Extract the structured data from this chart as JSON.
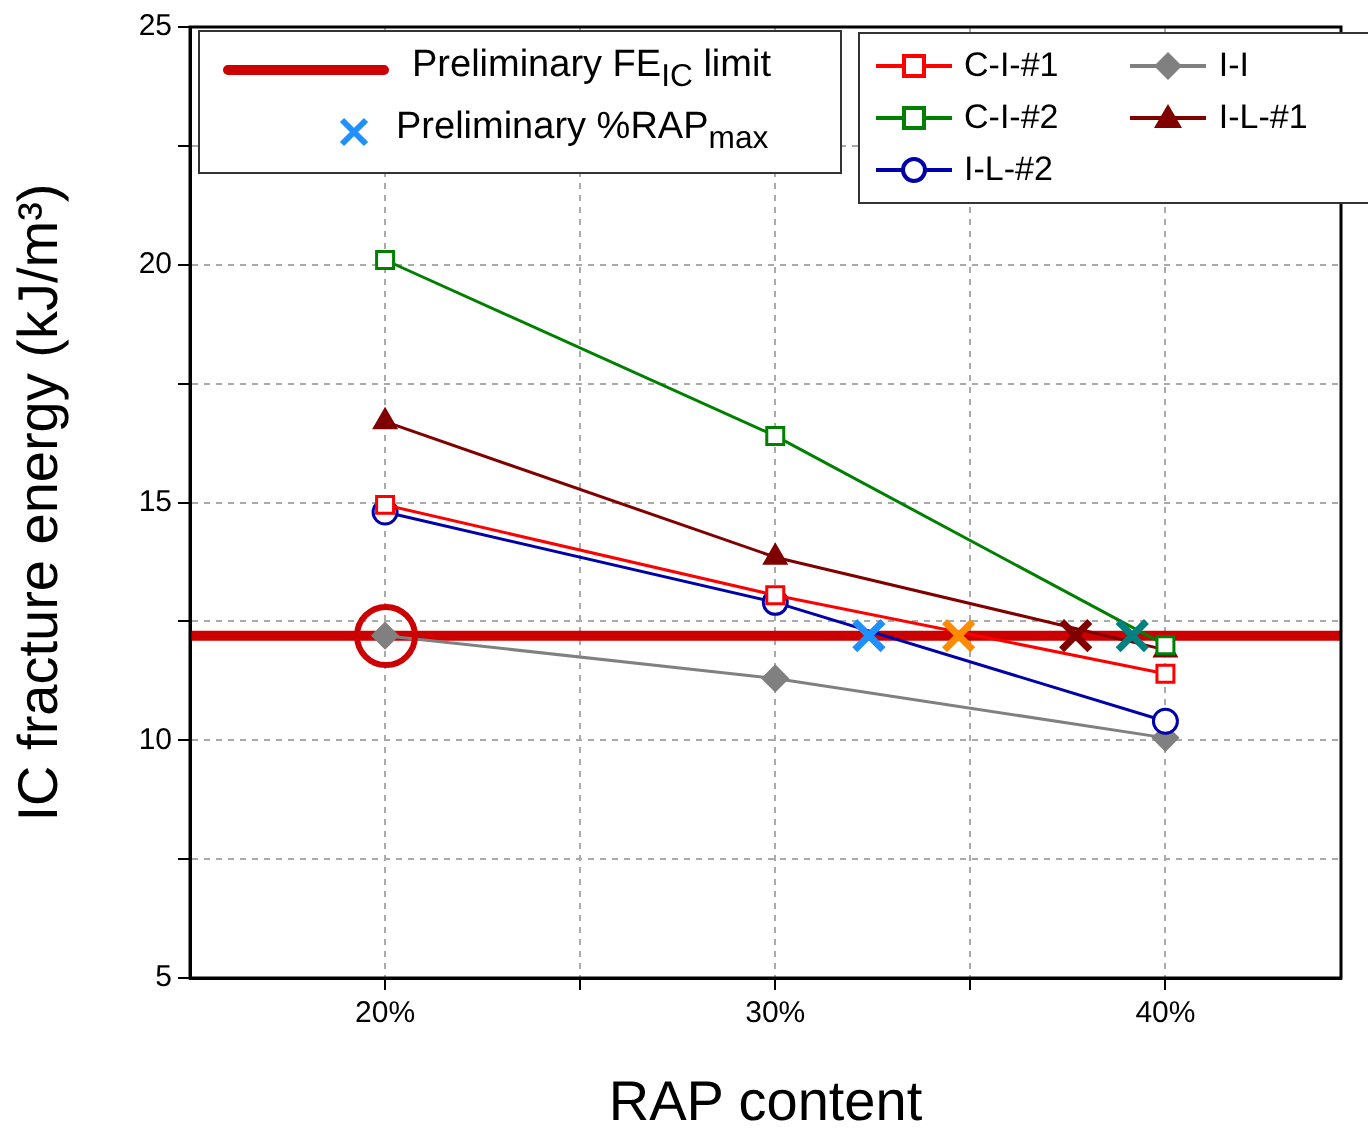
{
  "chart_data": {
    "type": "line",
    "xlabel": "RAP content",
    "ylabel": "IC fracture energy (kJ/m³)",
    "x": [
      20,
      30,
      40
    ],
    "series": [
      {
        "name": "C-I-#1",
        "color": "#ff0000",
        "marker": "square",
        "values": [
          14.95,
          13.05,
          11.4
        ]
      },
      {
        "name": "C-I-#2",
        "color": "#008000",
        "marker": "square",
        "values": [
          20.1,
          16.4,
          12.0
        ]
      },
      {
        "name": "I-L-#2",
        "color": "#0000aa",
        "marker": "circle",
        "values": [
          14.8,
          12.9,
          10.4
        ]
      },
      {
        "name": "I-I",
        "color": "#808080",
        "marker": "diamond",
        "values": [
          12.2,
          11.3,
          10.05
        ]
      },
      {
        "name": "I-L-#1",
        "color": "#800000",
        "marker": "triangle",
        "values": [
          16.7,
          13.85,
          11.9
        ]
      },
      {
        "name": "Preliminary %RAP$_{max}$",
        "type": "scatter",
        "marker": "cross",
        "x": [
          32.4,
          34.7,
          37.7,
          39.15
        ],
        "values": [
          12.2,
          12.2,
          12.2,
          12.2
        ],
        "colors": [
          "#1e90ff",
          "#ff8c00",
          "#800000",
          "#008080"
        ]
      }
    ],
    "ref_lines": [
      {
        "axis": "y",
        "value": 12.2,
        "label": "Preliminary FE$_{IC}$ limit",
        "color": "#cc0000"
      }
    ],
    "xlim": [
      15,
      44.5
    ],
    "xticks": [
      {
        "value": 20,
        "label": "20%"
      },
      {
        "value": 25,
        "label": null
      },
      {
        "value": 30,
        "label": "30%"
      },
      {
        "value": 35,
        "label": null
      },
      {
        "value": 40,
        "label": "40%"
      }
    ],
    "ylim": [
      5,
      25
    ],
    "yticks": [
      5,
      {
        "value": 7.5,
        "label": null
      },
      10,
      {
        "value": 12.5,
        "label": null
      },
      15,
      {
        "value": 17.5,
        "label": null
      },
      20,
      {
        "value": 22.5,
        "label": null
      },
      25
    ],
    "grid": true,
    "legend": "top"
  }
}
